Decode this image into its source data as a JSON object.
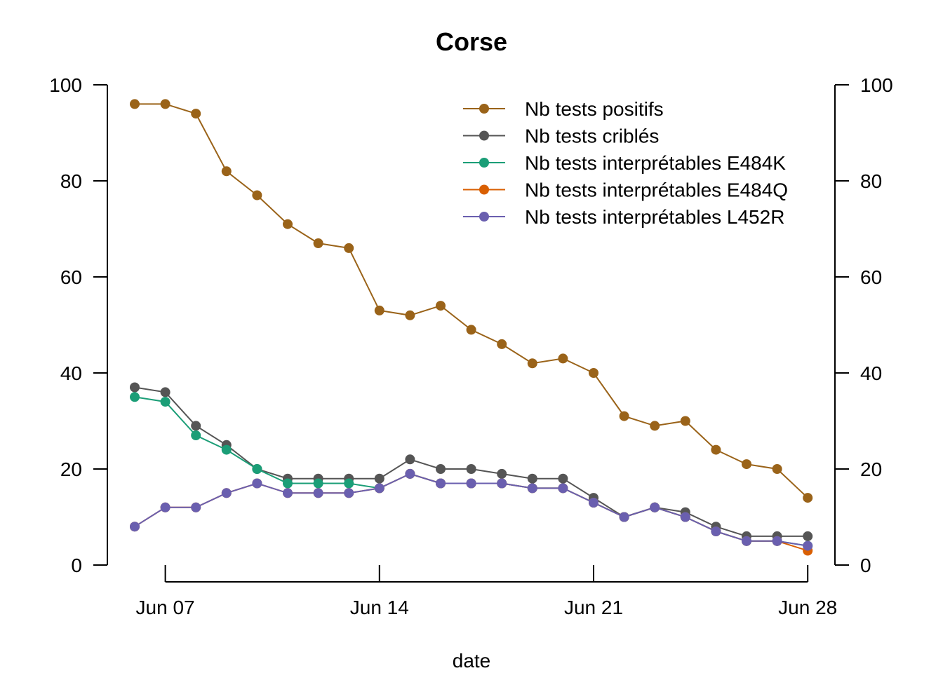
{
  "chart_data": {
    "type": "line",
    "title": "Corse",
    "xlabel": "date",
    "ylabel": "",
    "ylim": [
      0,
      100
    ],
    "y_ticks": [
      "0",
      "20",
      "40",
      "60",
      "80",
      "100"
    ],
    "y_right_ticks": [
      "0",
      "20",
      "40",
      "60",
      "80",
      "100"
    ],
    "x_tick_labels": [
      {
        "label": "Jun 07",
        "date": "2021-06-07"
      },
      {
        "label": "Jun 14",
        "date": "2021-06-14"
      },
      {
        "label": "Jun 21",
        "date": "2021-06-21"
      },
      {
        "label": "Jun 28",
        "date": "2021-06-28"
      }
    ],
    "x": [
      "2021-06-06",
      "2021-06-07",
      "2021-06-08",
      "2021-06-09",
      "2021-06-10",
      "2021-06-11",
      "2021-06-12",
      "2021-06-13",
      "2021-06-14",
      "2021-06-15",
      "2021-06-16",
      "2021-06-17",
      "2021-06-18",
      "2021-06-19",
      "2021-06-20",
      "2021-06-21",
      "2021-06-22",
      "2021-06-23",
      "2021-06-24",
      "2021-06-25",
      "2021-06-26",
      "2021-06-27",
      "2021-06-28"
    ],
    "legend_position": "top-right",
    "series": [
      {
        "name": "Nb tests positifs",
        "color": "#9A6319",
        "values": [
          96,
          96,
          94,
          82,
          77,
          71,
          67,
          66,
          53,
          52,
          54,
          49,
          46,
          42,
          43,
          40,
          31,
          29,
          30,
          24,
          21,
          20,
          14
        ]
      },
      {
        "name": "Nb tests criblés",
        "color": "#555555",
        "values": [
          37,
          36,
          29,
          25,
          20,
          18,
          18,
          18,
          18,
          22,
          20,
          20,
          19,
          18,
          18,
          14,
          10,
          12,
          11,
          8,
          6,
          6,
          6
        ]
      },
      {
        "name": "Nb tests interprétables E484K",
        "color": "#1B9E77",
        "values": [
          35,
          34,
          27,
          24,
          20,
          17,
          17,
          17,
          16,
          19,
          17,
          17,
          17,
          16,
          16,
          13,
          10,
          12,
          10,
          7,
          5,
          5,
          4
        ]
      },
      {
        "name": "Nb tests interprétables E484Q",
        "color": "#D95F02",
        "values": [
          8,
          12,
          12,
          15,
          17,
          15,
          15,
          15,
          16,
          19,
          17,
          17,
          17,
          16,
          16,
          13,
          10,
          12,
          10,
          7,
          5,
          5,
          3
        ]
      },
      {
        "name": "Nb tests interprétables L452R",
        "color": "#6A5FAF",
        "values": [
          8,
          12,
          12,
          15,
          17,
          15,
          15,
          15,
          16,
          19,
          17,
          17,
          17,
          16,
          16,
          13,
          10,
          12,
          10,
          7,
          5,
          5,
          4
        ]
      }
    ]
  }
}
